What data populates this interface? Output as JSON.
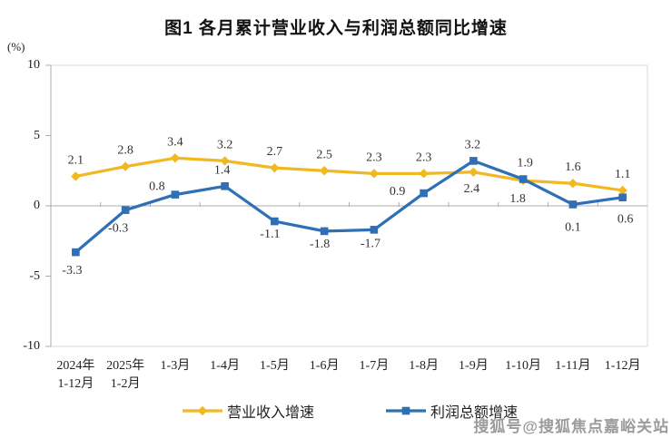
{
  "page": {
    "background": "#ffffff"
  },
  "watermark": {
    "text": "搜狐号@搜狐焦点嘉峪关站",
    "color": "#9b9b9b"
  },
  "chart_data": {
    "type": "line",
    "title": "图1  各月累计营业收入与利润总额同比增速",
    "unit_label": "(%)",
    "ylim": [
      -10,
      10
    ],
    "yticks": [
      10,
      5,
      0,
      -5,
      -10
    ],
    "grid": "zero-baseline-only",
    "legend_position": "bottom",
    "axis_color": "#ACACAC",
    "border_color": "#D8D8D8",
    "label_color": "#333333",
    "categories": [
      [
        "2024年",
        "1-12月"
      ],
      [
        "2025年",
        "1-2月"
      ],
      [
        "1-3月"
      ],
      [
        "1-4月"
      ],
      [
        "1-5月"
      ],
      [
        "1-6月"
      ],
      [
        "1-7月"
      ],
      [
        "1-8月"
      ],
      [
        "1-9月"
      ],
      [
        "1-10月"
      ],
      [
        "1-11月"
      ],
      [
        "1-12月"
      ]
    ],
    "series": [
      {
        "name": "营业收入增速",
        "color": "#F2B822",
        "marker": "diamond",
        "values": [
          2.1,
          2.8,
          3.4,
          3.2,
          2.7,
          2.5,
          2.3,
          2.3,
          2.4,
          1.8,
          1.6,
          1.1
        ],
        "label_sides": [
          "above",
          "above",
          "above",
          "above",
          "above",
          "above",
          "above",
          "above",
          "below",
          "below",
          "above",
          "above"
        ],
        "label_dx": [
          0,
          0,
          0,
          0,
          0,
          0,
          0,
          0,
          -2,
          -6,
          0,
          0
        ],
        "label_dy": [
          0,
          0,
          0,
          0,
          0,
          0,
          0,
          0,
          -2,
          0,
          0,
          0
        ]
      },
      {
        "name": "利润总额增速",
        "color": "#2E6FB5",
        "marker": "square",
        "values": [
          -3.3,
          -0.3,
          0.8,
          1.4,
          -1.1,
          -1.8,
          -1.7,
          0.9,
          3.2,
          1.9,
          0.1,
          0.6
        ],
        "label_sides": [
          "below",
          "below",
          "above",
          "above",
          "below",
          "below",
          "below",
          "above",
          "above",
          "above",
          "below",
          "below"
        ],
        "label_dx": [
          -4,
          -8,
          -20,
          -3,
          -5,
          -5,
          -4,
          -29,
          -1,
          2,
          0,
          3
        ],
        "label_dy": [
          0,
          0,
          9,
          0,
          -6,
          -6,
          -5,
          16,
          0,
          0,
          5,
          4
        ]
      }
    ]
  }
}
